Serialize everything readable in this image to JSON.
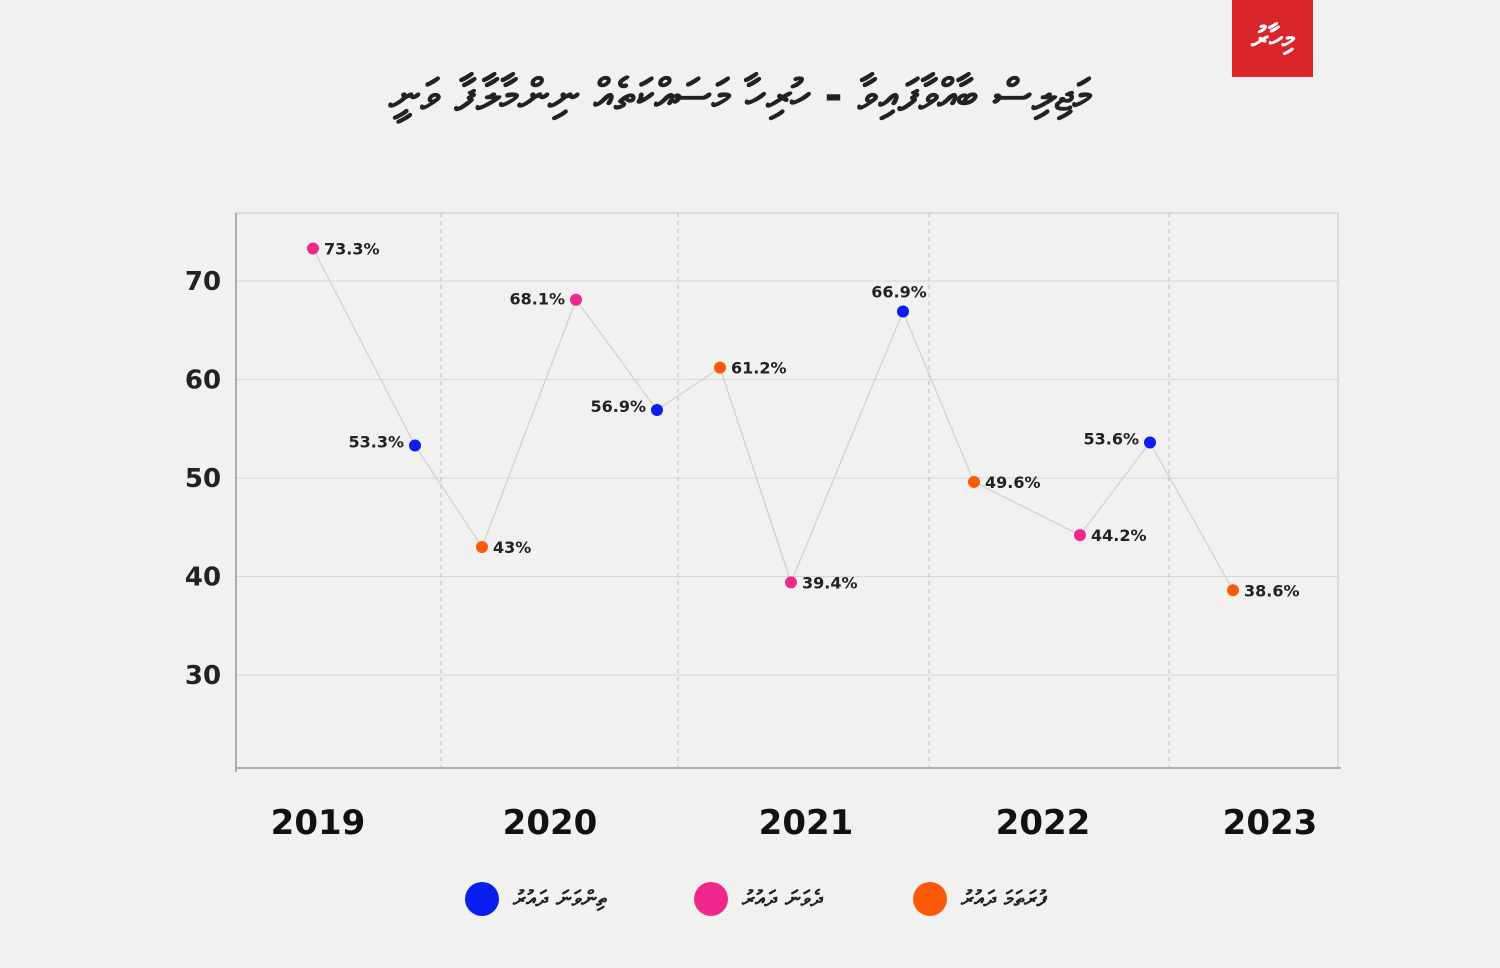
{
  "logo_text": "މިހާރު",
  "chart_data": {
    "type": "line",
    "title": "މަޖިލިސް ބާއްވާފައިވާ - ހުރިހާ މަސައްކަތެއް ނިންމާލާފާ ވަނީ",
    "xlabel": "",
    "ylabel": "",
    "categories": [
      "2019",
      "2020",
      "2021",
      "2022",
      "2023"
    ],
    "yticks": [
      30,
      40,
      50,
      60,
      70
    ],
    "ylim": [
      21,
      77
    ],
    "grid": true,
    "legend_placement": "bottom",
    "series": [
      {
        "name": "ތިންވަނަ ދައުރު",
        "color": "#0a1ef0"
      },
      {
        "name": "ދެވަނަ ދައުރު",
        "color": "#f0288c"
      },
      {
        "name": "ފުރަތަމަ ދައުރު",
        "color": "#fa5a0a"
      }
    ],
    "points": [
      {
        "year": "2019",
        "series": 1,
        "value": 73.3,
        "label": "73.3%"
      },
      {
        "year": "2019",
        "series": 0,
        "value": 53.3,
        "label": "53.3%"
      },
      {
        "year": "2020",
        "series": 2,
        "value": 43,
        "label": "43%"
      },
      {
        "year": "2020",
        "series": 1,
        "value": 68.1,
        "label": "68.1%"
      },
      {
        "year": "2020",
        "series": 0,
        "value": 56.9,
        "label": "56.9%"
      },
      {
        "year": "2021",
        "series": 2,
        "value": 61.2,
        "label": "61.2%"
      },
      {
        "year": "2021",
        "series": 1,
        "value": 39.4,
        "label": "39.4%"
      },
      {
        "year": "2021",
        "series": 0,
        "value": 66.9,
        "label": "66.9%"
      },
      {
        "year": "2022",
        "series": 2,
        "value": 49.6,
        "label": "49.6%"
      },
      {
        "year": "2022",
        "series": 1,
        "value": 44.2,
        "label": "44.2%"
      },
      {
        "year": "2022",
        "series": 0,
        "value": 53.6,
        "label": "53.6%"
      },
      {
        "year": "2023",
        "series": 2,
        "value": 38.6,
        "label": "38.6%"
      }
    ]
  }
}
